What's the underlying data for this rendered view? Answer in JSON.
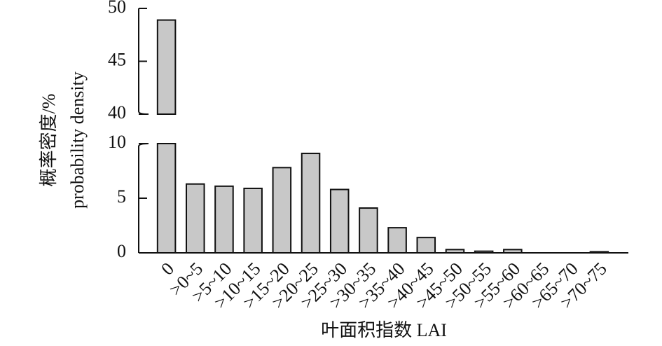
{
  "chart_data": {
    "type": "bar",
    "y_label_lines": [
      "概率密度/%",
      "probability density"
    ],
    "x_label": "叶面积指数 LAI",
    "categories": [
      "0",
      ">0~5",
      ">5~10",
      ">10~15",
      ">15~20",
      ">20~25",
      ">25~30",
      ">30~35",
      ">35~40",
      ">40~45",
      ">45~50",
      ">50~55",
      ">55~60",
      ">60~65",
      ">65~70",
      ">70~75"
    ],
    "values": [
      48.9,
      6.3,
      6.1,
      5.9,
      7.8,
      9.1,
      5.8,
      4.1,
      2.3,
      1.4,
      0.3,
      0.15,
      0.3,
      0,
      0,
      0.1
    ],
    "color": "#c8c8c8",
    "ylim": [
      0,
      10
    ],
    "yticks": [
      0,
      5,
      10
    ],
    "ylim_upper": [
      40,
      50
    ],
    "yticks_upper": [
      40,
      45,
      50
    ],
    "axis_break": true
  }
}
